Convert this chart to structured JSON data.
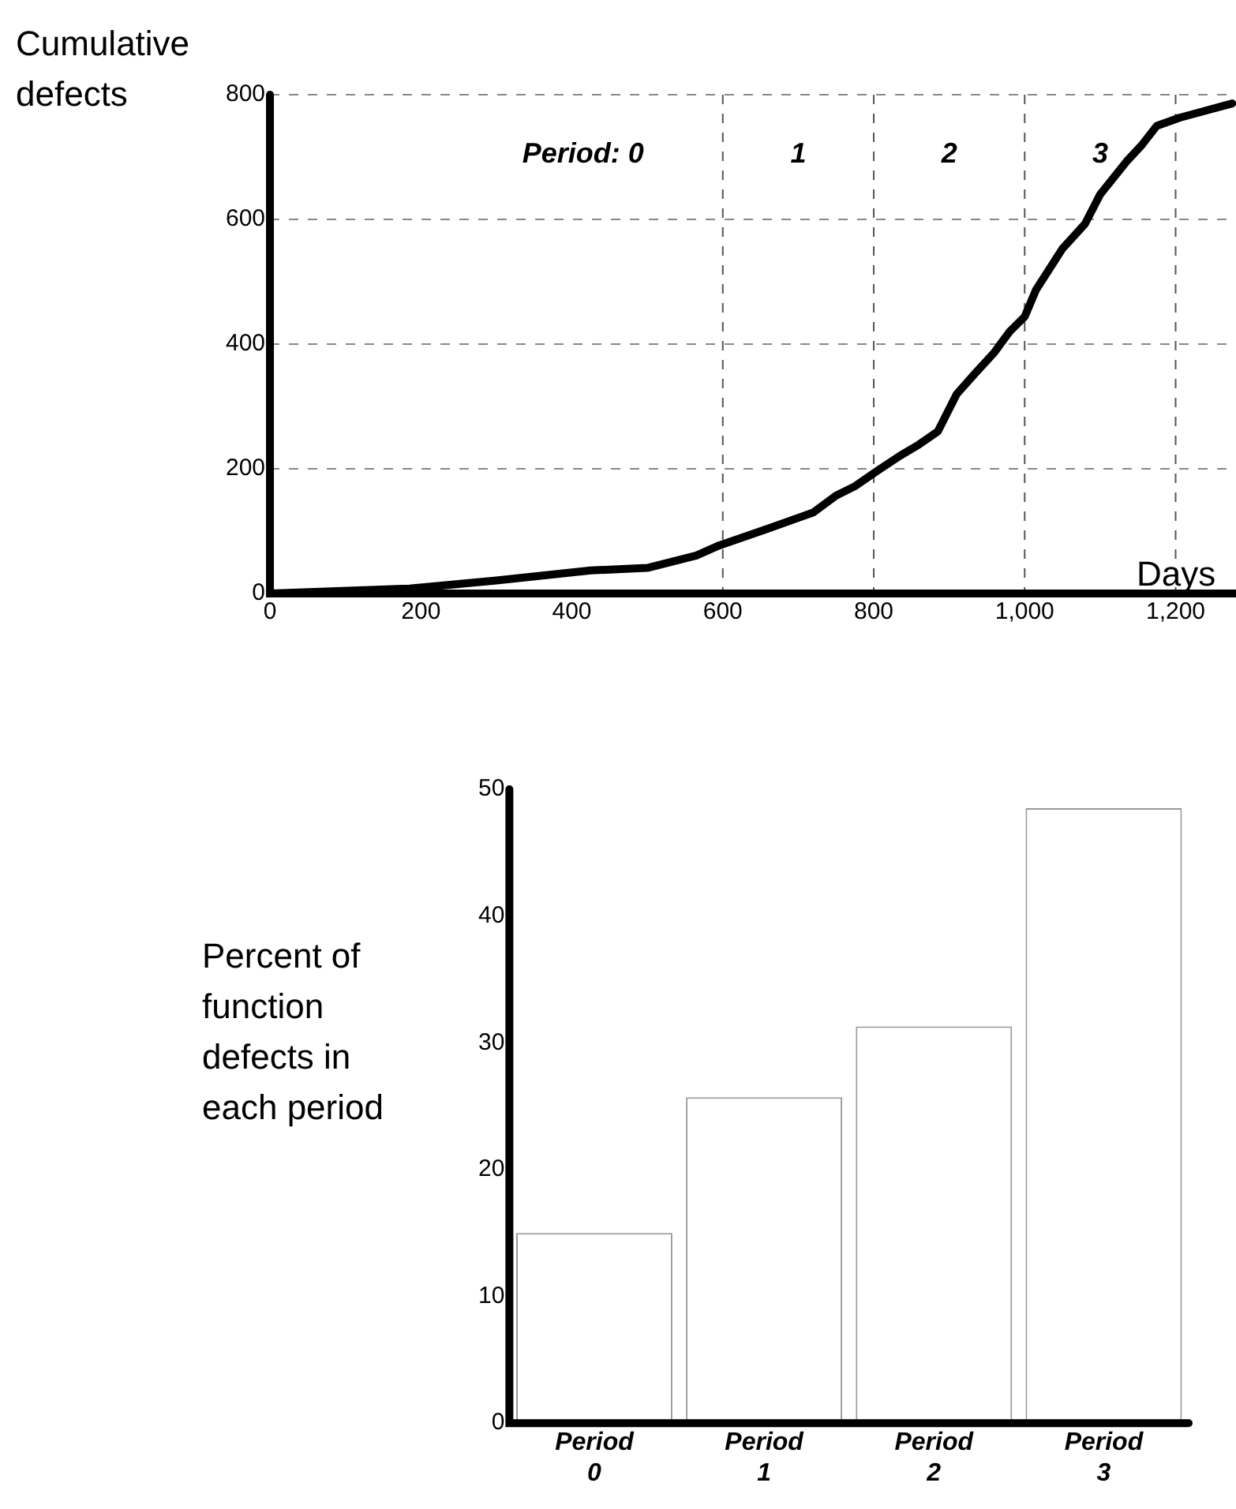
{
  "chart_data": [
    {
      "type": "line",
      "ylabel": "Cumulative defects",
      "xlabel": "Days",
      "x": [
        0,
        185,
        300,
        425,
        500,
        565,
        595,
        660,
        720,
        750,
        775,
        805,
        835,
        860,
        885,
        910,
        935,
        960,
        980,
        1000,
        1015,
        1050,
        1080,
        1100,
        1135,
        1155,
        1175,
        1205,
        1275
      ],
      "series": [
        {
          "color": "#000000",
          "values": [
            0,
            8,
            21,
            37,
            41,
            61,
            77,
            104,
            130,
            157,
            172,
            197,
            221,
            239,
            260,
            320,
            354,
            387,
            420,
            444,
            487,
            553,
            593,
            640,
            693,
            719,
            750,
            763,
            786
          ]
        }
      ],
      "xlim": [
        0,
        1280
      ],
      "xticks": [
        0,
        200,
        400,
        {
          "value": 600,
          "label": "600"
        },
        800,
        {
          "value": 1000,
          "label": "1,000"
        },
        {
          "value": 1200,
          "label": "1,200"
        }
      ],
      "ylim": [
        0,
        800
      ],
      "yticks": [
        0,
        200,
        400,
        600,
        800
      ],
      "grid": "y",
      "legend": false,
      "marker": "none",
      "line_style": "solid",
      "ref_lines": [
        {
          "axis": "x",
          "value": 600,
          "line_style": "dashed",
          "color": "#555555"
        },
        {
          "axis": "x",
          "value": 800,
          "line_style": "dashed",
          "color": "#555555"
        },
        {
          "axis": "x",
          "value": 1000,
          "line_style": "dashed",
          "color": "#555555"
        },
        {
          "axis": "x",
          "value": 1200,
          "line_style": "dashed",
          "color": "#555555"
        }
      ],
      "annotations": [
        "Period: 0",
        "1",
        "2",
        "3"
      ]
    },
    {
      "type": "bar",
      "ylabel": "Percent of function defects in each period",
      "categories": [
        "Period 0",
        "Period 1",
        "Period 2",
        "Period 3"
      ],
      "values": [
        15,
        25.7,
        31.3,
        48.5
      ],
      "color": "#ffffff",
      "ylim": [
        0,
        50
      ],
      "yticks": [
        0,
        10,
        20,
        30,
        40,
        50
      ],
      "grid": false,
      "legend": false
    }
  ]
}
